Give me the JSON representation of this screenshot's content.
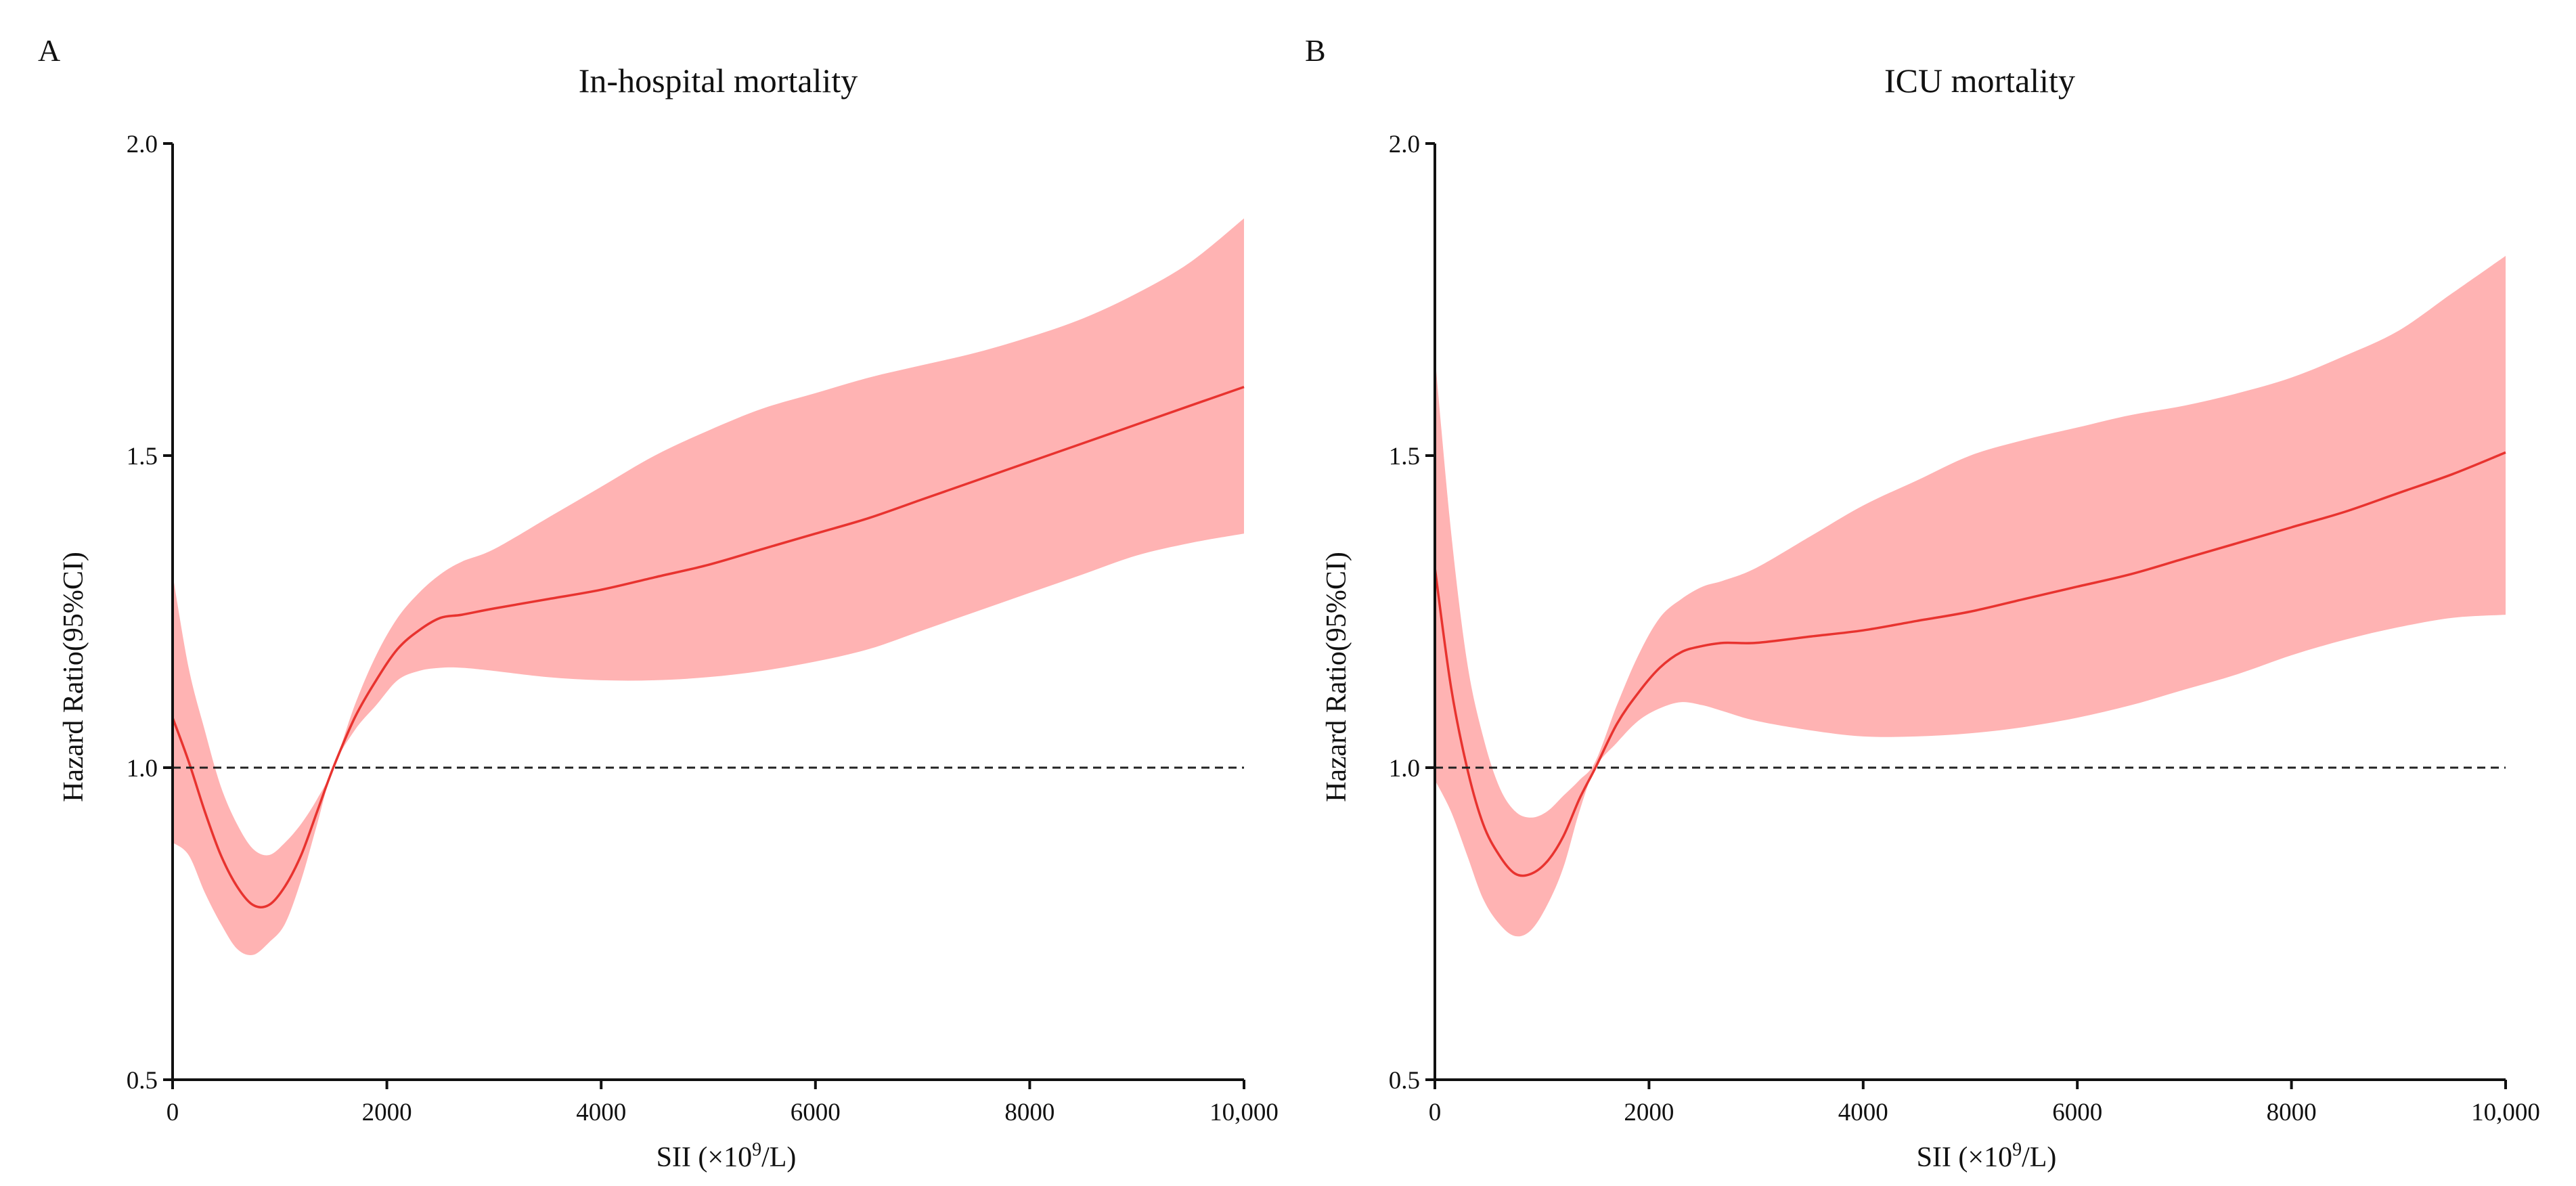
{
  "chart_data": [
    {
      "panel": "A",
      "type": "area",
      "title": "In-hospital mortality",
      "xlabel": "SII (×10",
      "xlabel_sup": "9",
      "xlabel_end": "/L)",
      "ylabel": "Hazard Ratio(95%CI)",
      "xlim": [
        0,
        10000
      ],
      "ylim": [
        0.5,
        2.0
      ],
      "x_ticks": [
        0,
        2000,
        4000,
        6000,
        8000,
        10000
      ],
      "x_tick_labels": [
        "0",
        "2000",
        "4000",
        "6000",
        "8000",
        "10,000"
      ],
      "y_ticks": [
        0.5,
        1.0,
        1.5,
        2.0
      ],
      "y_tick_labels": [
        "0.5",
        "1.0",
        "1.5",
        "2.0"
      ],
      "reference_line": 1.0,
      "grid": false,
      "line_color": "#e8332f",
      "band_color": "#ffb3b3",
      "series": [
        {
          "name": "HR",
          "x": [
            0,
            150,
            300,
            450,
            600,
            750,
            900,
            1050,
            1200,
            1350,
            1500,
            1700,
            1900,
            2100,
            2300,
            2500,
            2700,
            3000,
            3500,
            4000,
            4500,
            5000,
            5500,
            6000,
            6500,
            7000,
            7500,
            8000,
            8500,
            9000,
            9500,
            10000
          ],
          "y": [
            1.08,
            1.01,
            0.93,
            0.86,
            0.81,
            0.78,
            0.78,
            0.81,
            0.86,
            0.93,
            1.0,
            1.08,
            1.14,
            1.19,
            1.22,
            1.24,
            1.245,
            1.255,
            1.27,
            1.285,
            1.305,
            1.325,
            1.35,
            1.375,
            1.4,
            1.43,
            1.46,
            1.49,
            1.52,
            1.55,
            1.58,
            1.61
          ],
          "lower": [
            0.88,
            0.86,
            0.8,
            0.75,
            0.71,
            0.7,
            0.72,
            0.75,
            0.82,
            0.91,
            1.0,
            1.06,
            1.1,
            1.14,
            1.155,
            1.16,
            1.16,
            1.155,
            1.145,
            1.14,
            1.14,
            1.145,
            1.155,
            1.17,
            1.19,
            1.22,
            1.25,
            1.28,
            1.31,
            1.34,
            1.36,
            1.375
          ],
          "upper": [
            1.31,
            1.16,
            1.06,
            0.97,
            0.91,
            0.87,
            0.86,
            0.88,
            0.91,
            0.95,
            1.0,
            1.1,
            1.18,
            1.24,
            1.28,
            1.31,
            1.33,
            1.35,
            1.4,
            1.45,
            1.5,
            1.54,
            1.575,
            1.6,
            1.625,
            1.645,
            1.665,
            1.69,
            1.72,
            1.76,
            1.81,
            1.88
          ]
        }
      ]
    },
    {
      "panel": "B",
      "type": "area",
      "title": "ICU mortality",
      "xlabel": "SII (×10",
      "xlabel_sup": "9",
      "xlabel_end": "/L)",
      "ylabel": "Hazard Ratio(95%CI)",
      "xlim": [
        0,
        10000
      ],
      "ylim": [
        0.5,
        2.0
      ],
      "x_ticks": [
        0,
        2000,
        4000,
        6000,
        8000,
        10000
      ],
      "x_tick_labels": [
        "0",
        "2000",
        "4000",
        "6000",
        "8000",
        "10,000"
      ],
      "y_ticks": [
        0.5,
        1.0,
        1.5,
        2.0
      ],
      "y_tick_labels": [
        "0.5",
        "1.0",
        "1.5",
        "2.0"
      ],
      "reference_line": 1.0,
      "grid": false,
      "line_color": "#e8332f",
      "band_color": "#ffb3b3",
      "series": [
        {
          "name": "HR",
          "x": [
            0,
            150,
            300,
            450,
            600,
            750,
            900,
            1050,
            1200,
            1350,
            1500,
            1700,
            1900,
            2100,
            2300,
            2500,
            2700,
            3000,
            3500,
            4000,
            4500,
            5000,
            5500,
            6000,
            6500,
            7000,
            7500,
            8000,
            8500,
            9000,
            9500,
            10000
          ],
          "y": [
            1.32,
            1.13,
            1.0,
            0.91,
            0.86,
            0.83,
            0.83,
            0.85,
            0.89,
            0.95,
            1.0,
            1.07,
            1.12,
            1.16,
            1.185,
            1.195,
            1.2,
            1.2,
            1.21,
            1.22,
            1.235,
            1.25,
            1.27,
            1.29,
            1.31,
            1.335,
            1.36,
            1.385,
            1.41,
            1.44,
            1.47,
            1.505
          ],
          "lower": [
            0.98,
            0.93,
            0.86,
            0.79,
            0.75,
            0.73,
            0.74,
            0.78,
            0.84,
            0.93,
            1.0,
            1.04,
            1.075,
            1.095,
            1.105,
            1.1,
            1.09,
            1.075,
            1.06,
            1.05,
            1.05,
            1.055,
            1.065,
            1.08,
            1.1,
            1.125,
            1.15,
            1.18,
            1.205,
            1.225,
            1.24,
            1.245
          ],
          "upper": [
            1.66,
            1.38,
            1.17,
            1.05,
            0.97,
            0.93,
            0.92,
            0.93,
            0.955,
            0.98,
            1.01,
            1.1,
            1.18,
            1.24,
            1.27,
            1.29,
            1.3,
            1.32,
            1.37,
            1.42,
            1.46,
            1.5,
            1.525,
            1.545,
            1.565,
            1.58,
            1.6,
            1.625,
            1.66,
            1.7,
            1.76,
            1.82
          ]
        }
      ]
    }
  ]
}
